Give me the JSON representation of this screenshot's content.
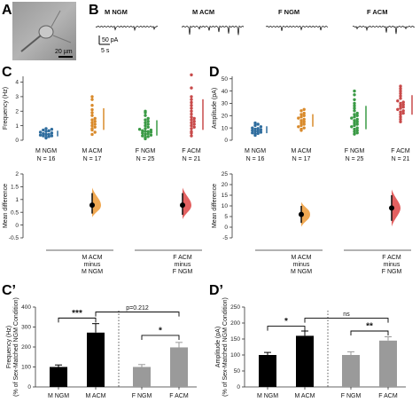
{
  "panel_labels": {
    "A": "A",
    "B": "B",
    "C": "C",
    "D": "D",
    "Cp": "C’",
    "Dp": "D’"
  },
  "micrograph": {
    "scale_label": "20 µm"
  },
  "traces": {
    "labels": [
      "M NGM",
      "M ACM",
      "F NGM",
      "F ACM"
    ],
    "scale_y": "50 pA",
    "scale_x": "5 s"
  },
  "chart_data": [
    {
      "id": "C-frequency-swarm",
      "type": "scatter",
      "ylabel": "Frequency (Hz)",
      "ylim": [
        0,
        4.4
      ],
      "yticks": [
        0,
        1,
        2,
        3,
        4
      ],
      "groups": [
        {
          "label": "M NGM",
          "n": "N = 16",
          "color": "#2f6d9e",
          "values": [
            0.15,
            0.2,
            0.25,
            0.3,
            0.3,
            0.35,
            0.4,
            0.4,
            0.45,
            0.5,
            0.55,
            0.6,
            0.65,
            0.7,
            0.75,
            0.8
          ]
        },
        {
          "label": "M ACM",
          "n": "N = 17",
          "color": "#d98a2b",
          "values": [
            0.4,
            0.55,
            0.7,
            0.8,
            0.9,
            1.0,
            1.1,
            1.2,
            1.3,
            1.4,
            1.5,
            1.7,
            1.9,
            2.1,
            2.4,
            2.8,
            3.0
          ]
        },
        {
          "label": "F NGM",
          "n": "N = 25",
          "color": "#3a9a45",
          "values": [
            0.1,
            0.2,
            0.25,
            0.3,
            0.35,
            0.4,
            0.45,
            0.5,
            0.55,
            0.6,
            0.6,
            0.65,
            0.7,
            0.75,
            0.8,
            0.9,
            1.0,
            1.1,
            1.2,
            1.3,
            1.4,
            1.5,
            1.7,
            1.9,
            2.0
          ]
        },
        {
          "label": "F ACM",
          "n": "N = 21",
          "color": "#c84a4a",
          "values": [
            0.3,
            0.5,
            0.6,
            0.8,
            0.9,
            1.0,
            1.1,
            1.2,
            1.3,
            1.4,
            1.5,
            1.6,
            1.8,
            2.0,
            2.2,
            2.4,
            2.6,
            2.8,
            3.0,
            3.6,
            4.5
          ]
        }
      ]
    },
    {
      "id": "C-mean-difference",
      "type": "scatter",
      "ylabel": "Mean difference",
      "ylim": [
        -0.5,
        2.0
      ],
      "yticks": [
        -0.5,
        0.0,
        0.5,
        1.0,
        1.5,
        2.0
      ],
      "comparisons": [
        {
          "label_lines": [
            "M ACM",
            "minus",
            "M NGM"
          ],
          "mean": 0.78,
          "ci": [
            0.45,
            1.25
          ],
          "color": "#f0a040"
        },
        {
          "label_lines": [
            "F ACM",
            "minus",
            "F NGM"
          ],
          "mean": 0.78,
          "ci": [
            0.4,
            1.25
          ],
          "color": "#e05050"
        }
      ]
    },
    {
      "id": "D-amplitude-swarm",
      "type": "scatter",
      "ylabel": "Amplitude (pA)",
      "ylim": [
        0,
        52
      ],
      "yticks": [
        0,
        10,
        20,
        30,
        40,
        50
      ],
      "groups": [
        {
          "label": "M NGM",
          "n": "N = 16",
          "color": "#2f6d9e",
          "values": [
            4,
            5,
            5.5,
            6,
            6.5,
            7,
            7.5,
            8,
            8.5,
            9,
            9.5,
            10,
            11,
            12,
            13,
            14
          ]
        },
        {
          "label": "M ACM",
          "n": "N = 17",
          "color": "#d98a2b",
          "values": [
            8,
            9,
            10,
            11,
            12,
            13,
            14,
            15,
            16,
            17,
            18,
            19,
            20,
            21,
            22,
            24,
            25
          ]
        },
        {
          "label": "F NGM",
          "n": "N = 25",
          "color": "#3a9a45",
          "values": [
            5,
            6,
            7,
            8,
            9,
            10,
            11,
            12,
            13,
            14,
            15,
            16,
            17,
            18,
            19,
            20,
            21,
            22,
            24,
            26,
            28,
            30,
            33,
            37,
            40
          ]
        },
        {
          "label": "F ACM",
          "n": "N = 21",
          "color": "#c84a4a",
          "values": [
            15,
            17,
            19,
            21,
            22,
            23,
            24,
            25,
            26,
            27,
            28,
            29,
            30,
            31,
            32,
            34,
            36,
            38,
            40,
            42,
            44
          ]
        }
      ]
    },
    {
      "id": "D-mean-difference",
      "type": "scatter",
      "ylabel": "Mean difference",
      "ylim": [
        -5,
        25
      ],
      "yticks": [
        -5,
        0,
        5,
        10,
        15,
        20,
        25
      ],
      "comparisons": [
        {
          "label_lines": [
            "M ACM",
            "minus",
            "M NGM"
          ],
          "mean": 6,
          "ci": [
            2,
            10
          ],
          "color": "#f0a040"
        },
        {
          "label_lines": [
            "F ACM",
            "minus",
            "F NGM"
          ],
          "mean": 9,
          "ci": [
            3,
            15
          ],
          "color": "#e05050"
        }
      ]
    },
    {
      "id": "Cp-frequency-bar",
      "type": "bar",
      "ylabel": "Frequency (Hz)",
      "ylabel2": "(% of Sex-Matched NGM Condition)",
      "ylim": [
        0,
        400
      ],
      "yticks": [
        0,
        100,
        200,
        300,
        400
      ],
      "categories": [
        "M NGM",
        "M ACM",
        "F NGM",
        "F ACM"
      ],
      "values": [
        100,
        272,
        100,
        198
      ],
      "errors": [
        10,
        45,
        12,
        25
      ],
      "colors": [
        "#000000",
        "#000000",
        "#9a9a9a",
        "#9a9a9a"
      ],
      "annotations": [
        {
          "text": "***",
          "from": 0,
          "to": 1,
          "y": 345
        },
        {
          "text": "*",
          "from": 2,
          "to": 3,
          "y": 258
        },
        {
          "text": "p=0.212",
          "from": 1,
          "to": 3,
          "y": 375
        }
      ]
    },
    {
      "id": "Dp-amplitude-bar",
      "type": "bar",
      "ylabel": "Amplitude (pA)",
      "ylabel2": "(% of Sex-Matched NGM Condition)",
      "ylim": [
        0,
        250
      ],
      "yticks": [
        0,
        50,
        100,
        150,
        200,
        250
      ],
      "categories": [
        "M NGM",
        "M ACM",
        "F NGM",
        "F ACM"
      ],
      "values": [
        100,
        160,
        100,
        145
      ],
      "errors": [
        8,
        15,
        10,
        12
      ],
      "colors": [
        "#000000",
        "#000000",
        "#9a9a9a",
        "#9a9a9a"
      ],
      "annotations": [
        {
          "text": "*",
          "from": 0,
          "to": 1,
          "y": 190
        },
        {
          "text": "**",
          "from": 2,
          "to": 3,
          "y": 175
        },
        {
          "text": "ns",
          "from": 1,
          "to": 3,
          "y": 215
        }
      ]
    }
  ]
}
